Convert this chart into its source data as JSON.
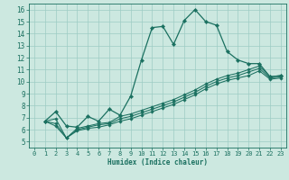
{
  "xlabel": "Humidex (Indice chaleur)",
  "bg_color": "#cce8e0",
  "grid_color": "#9eccc4",
  "line_color": "#1a7060",
  "xlim": [
    -0.5,
    23.5
  ],
  "ylim": [
    4.5,
    16.5
  ],
  "xticks": [
    0,
    1,
    2,
    3,
    4,
    5,
    6,
    7,
    8,
    9,
    10,
    11,
    12,
    13,
    14,
    15,
    16,
    17,
    18,
    19,
    20,
    21,
    22,
    23
  ],
  "yticks": [
    5,
    6,
    7,
    8,
    9,
    10,
    11,
    12,
    13,
    14,
    15,
    16
  ],
  "line1_x": [
    1,
    2,
    3,
    4,
    5,
    6,
    7,
    8,
    9,
    10,
    11,
    12,
    13,
    14,
    15,
    16,
    17,
    18,
    19,
    20,
    21,
    22,
    23
  ],
  "line1_y": [
    6.7,
    7.5,
    6.3,
    6.2,
    7.1,
    6.7,
    7.7,
    7.2,
    8.8,
    11.8,
    14.5,
    14.6,
    13.1,
    15.1,
    16.0,
    15.0,
    14.7,
    12.5,
    11.8,
    11.5,
    11.5,
    10.4,
    10.5
  ],
  "line2_x": [
    1,
    2,
    3,
    4,
    5,
    6,
    7,
    8,
    9,
    10,
    11,
    12,
    13,
    14,
    15,
    16,
    17,
    18,
    19,
    20,
    21,
    22,
    23
  ],
  "line2_y": [
    6.7,
    6.9,
    5.3,
    6.1,
    6.3,
    6.5,
    6.6,
    7.1,
    7.3,
    7.6,
    7.9,
    8.2,
    8.5,
    8.9,
    9.3,
    9.8,
    10.2,
    10.5,
    10.7,
    11.0,
    11.3,
    10.4,
    10.5
  ],
  "line3_x": [
    1,
    2,
    3,
    4,
    5,
    6,
    7,
    8,
    9,
    10,
    11,
    12,
    13,
    14,
    15,
    16,
    17,
    18,
    19,
    20,
    21,
    22,
    23
  ],
  "line3_y": [
    6.7,
    6.5,
    5.3,
    6.0,
    6.2,
    6.4,
    6.5,
    6.9,
    7.1,
    7.4,
    7.7,
    8.0,
    8.3,
    8.7,
    9.1,
    9.6,
    10.0,
    10.3,
    10.5,
    10.8,
    11.1,
    10.3,
    10.4
  ],
  "line4_x": [
    1,
    2,
    3,
    4,
    5,
    6,
    7,
    8,
    9,
    10,
    11,
    12,
    13,
    14,
    15,
    16,
    17,
    18,
    19,
    20,
    21,
    22,
    23
  ],
  "line4_y": [
    6.7,
    6.3,
    5.3,
    5.9,
    6.1,
    6.2,
    6.4,
    6.7,
    6.9,
    7.2,
    7.5,
    7.8,
    8.1,
    8.5,
    8.9,
    9.4,
    9.8,
    10.1,
    10.3,
    10.5,
    10.9,
    10.2,
    10.3
  ]
}
